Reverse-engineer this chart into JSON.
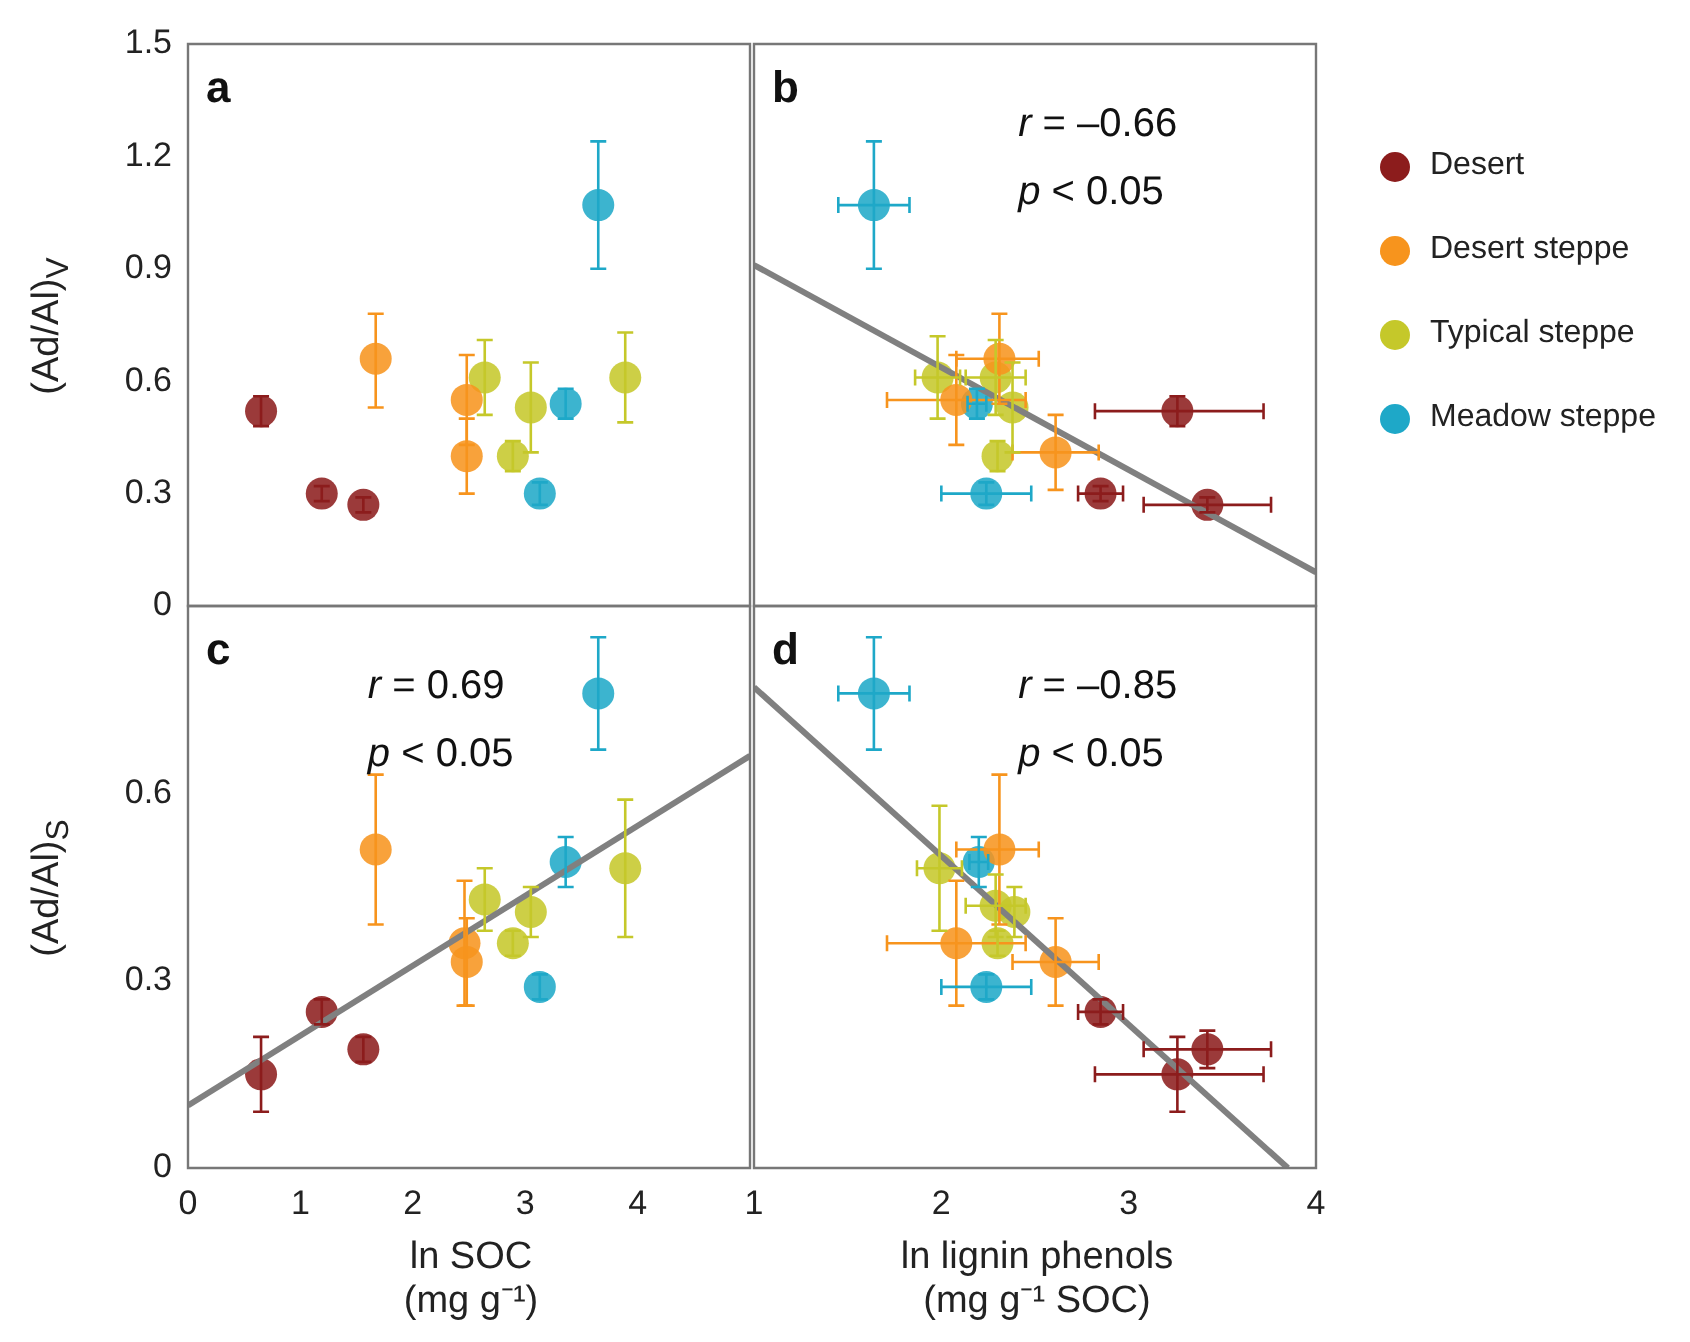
{
  "chart_data": [
    {
      "type": "scatter",
      "title": "a",
      "ylabel": "(Ad/Al)$_{V}$",
      "xlim": [
        0,
        5
      ],
      "xticks": [
        0,
        1,
        2,
        3,
        4
      ],
      "ylim": [
        0,
        1.5
      ],
      "yticks": [
        0,
        0.3,
        0.6,
        0.9,
        1.2,
        1.5
      ],
      "tick_labels": "y",
      "marker": "circle",
      "series": [
        {
          "color": "#8c1c1c",
          "x": [
            0.65,
            1.19,
            1.56
          ],
          "values": [
            0.52,
            0.3,
            0.27
          ],
          "errors": [
            0.04,
            0.02,
            0.02
          ]
        },
        {
          "color": "#f7941d",
          "x": [
            1.67,
            2.48,
            2.48
          ],
          "values": [
            0.66,
            0.55,
            0.4
          ],
          "errors": [
            [
              0.53,
              0.78
            ],
            0.12,
            0.1
          ]
        },
        {
          "color": "#c5c82a",
          "x": [
            2.64,
            2.89,
            3.05,
            3.89
          ],
          "values": [
            0.61,
            0.4,
            0.53,
            0.61
          ],
          "errors": [
            0.1,
            0.04,
            0.12,
            0.12
          ]
        },
        {
          "color": "#1ea8c8",
          "x": [
            3.13,
            3.36,
            3.65
          ],
          "values": [
            0.3,
            0.54,
            1.07
          ],
          "errors": [
            0.03,
            0.04,
            0.17
          ]
        }
      ]
    },
    {
      "type": "scatter",
      "title": "b",
      "annotations": [
        "r = –0.66",
        "p < 0.05"
      ],
      "xlim": [
        1,
        4
      ],
      "xticks": [
        1,
        2,
        3,
        4
      ],
      "ylim": [
        0,
        1.5
      ],
      "yticks": [
        0,
        0.3,
        0.6,
        0.9,
        1.2,
        1.5
      ],
      "tick_labels": false,
      "marker": "circle",
      "legend": "right",
      "series": [
        {
          "name": "Desert",
          "color": "#8c1c1c",
          "x": [
            2.85,
            3.26,
            3.42
          ],
          "values": [
            0.3,
            0.52,
            0.27
          ],
          "xerrors": [
            0.12,
            [
              2.82,
              3.72
            ],
            [
              3.08,
              3.76
            ]
          ],
          "errors": [
            0.02,
            0.04,
            0.02
          ]
        },
        {
          "name": "Desert steppe",
          "color": "#f7941d",
          "x": [
            2.31,
            2.08,
            2.61
          ],
          "values": [
            0.66,
            0.55,
            0.41
          ],
          "xerrors": [
            [
              2.08,
              2.52
            ],
            0.37,
            0.23
          ],
          "errors": [
            0.12,
            0.12,
            0.1
          ]
        },
        {
          "name": "Typical steppe",
          "color": "#c5c82a",
          "x": [
            1.98,
            2.29,
            2.38,
            2.3
          ],
          "values": [
            0.61,
            0.61,
            0.53,
            0.4
          ],
          "xerrors": [
            0.12,
            0.16,
            null,
            null
          ],
          "errors": [
            0.11,
            0.1,
            0.12,
            0.04
          ]
        },
        {
          "name": "Meadow steppe",
          "color": "#1ea8c8",
          "x": [
            1.64,
            2.19,
            2.24
          ],
          "values": [
            1.07,
            0.54,
            0.3
          ],
          "xerrors": [
            0.19,
            0.05,
            0.24
          ],
          "errors": [
            0.17,
            0.04,
            0.03
          ]
        },
        {
          "type": "line",
          "marker": "none",
          "color": "#808080",
          "x": [
            1,
            4
          ],
          "values": [
            0.91,
            0.09
          ]
        }
      ]
    },
    {
      "type": "scatter",
      "title": "c",
      "annotations": [
        "r = 0.69",
        "p < 0.05"
      ],
      "xlabel": "ln SOC\n(mg g⁻¹)",
      "ylabel": "(Ad/Al)$_{S}$",
      "xlim": [
        0,
        5
      ],
      "xticks": [
        0,
        1,
        2,
        3,
        4
      ],
      "ylim": [
        0,
        0.9
      ],
      "yticks": [
        0,
        0.3,
        0.6
      ],
      "marker": "circle",
      "series": [
        {
          "color": "#8c1c1c",
          "x": [
            0.65,
            1.19,
            1.56
          ],
          "values": [
            0.15,
            0.25,
            0.19
          ],
          "errors": [
            0.06,
            0.02,
            0.02
          ]
        },
        {
          "color": "#f7941d",
          "x": [
            1.67,
            2.46,
            2.48
          ],
          "values": [
            0.51,
            0.36,
            0.33
          ],
          "errors": [
            0.12,
            0.1,
            0.07
          ]
        },
        {
          "color": "#c5c82a",
          "x": [
            2.64,
            2.89,
            3.05,
            3.89
          ],
          "values": [
            0.43,
            0.36,
            0.41,
            0.48
          ],
          "errors": [
            0.05,
            0.02,
            0.04,
            0.11
          ]
        },
        {
          "color": "#1ea8c8",
          "x": [
            3.13,
            3.36,
            3.65
          ],
          "values": [
            0.29,
            0.49,
            0.76
          ],
          "errors": [
            0.02,
            0.04,
            0.09
          ]
        },
        {
          "type": "line",
          "marker": "none",
          "color": "#808080",
          "x": [
            0,
            5
          ],
          "values": [
            0.1,
            0.66
          ]
        }
      ]
    },
    {
      "type": "scatter",
      "title": "d",
      "annotations": [
        "r = –0.85",
        "p < 0.05"
      ],
      "xlabel": "ln lignin phenols\n(mg g⁻¹ SOC)",
      "xlim": [
        1,
        4
      ],
      "xticks": [
        1,
        2,
        3,
        4
      ],
      "ylim": [
        0,
        0.9
      ],
      "yticks": [
        0,
        0.3,
        0.6
      ],
      "tick_labels": "x",
      "marker": "circle",
      "series": [
        {
          "color": "#8c1c1c",
          "x": [
            2.85,
            3.42,
            3.26
          ],
          "values": [
            0.25,
            0.19,
            0.15
          ],
          "xerrors": [
            0.12,
            [
              3.08,
              3.76
            ],
            [
              2.82,
              3.72
            ]
          ],
          "errors": [
            0.02,
            0.03,
            0.06
          ]
        },
        {
          "color": "#f7941d",
          "x": [
            2.31,
            2.08,
            2.61
          ],
          "values": [
            0.51,
            0.36,
            0.33
          ],
          "xerrors": [
            [
              2.08,
              2.52
            ],
            0.37,
            0.23
          ],
          "errors": [
            0.12,
            0.1,
            0.07
          ]
        },
        {
          "color": "#c5c82a",
          "x": [
            1.99,
            2.29,
            2.39,
            2.3
          ],
          "values": [
            0.48,
            0.42,
            0.41,
            0.36
          ],
          "xerrors": [
            0.12,
            0.16,
            null,
            null
          ],
          "errors": [
            0.1,
            0.05,
            0.04,
            0.02
          ]
        },
        {
          "color": "#1ea8c8",
          "x": [
            1.64,
            2.2,
            2.24
          ],
          "values": [
            0.76,
            0.49,
            0.29
          ],
          "xerrors": [
            0.19,
            0.05,
            0.24
          ],
          "errors": [
            0.09,
            0.04,
            0.02
          ]
        },
        {
          "type": "line",
          "marker": "none",
          "color": "#808080",
          "x": [
            1,
            3.85
          ],
          "values": [
            0.77,
            0
          ]
        }
      ]
    }
  ]
}
